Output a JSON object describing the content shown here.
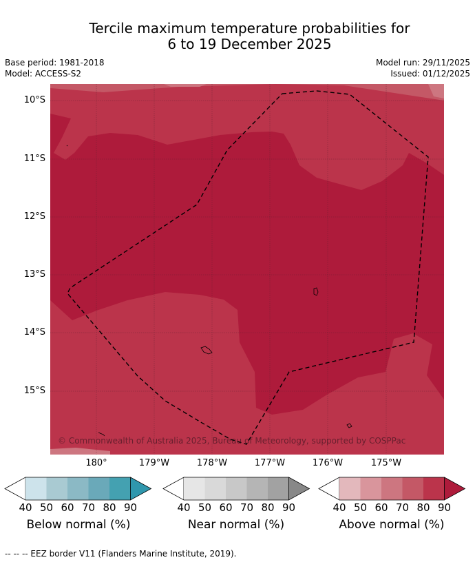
{
  "title_line1": "Tercile maximum temperature probabilities for",
  "title_line2": "6 to 19 December 2025",
  "base_period": "Base period: 1981-2018",
  "model": "Model: ACCESS-S2",
  "model_run": "Model run: 29/11/2025",
  "issued": "Issued: 01/12/2025",
  "copyright": "© Commonwealth of Australia 2025, Bureau of Meteorology, supported by COSPPac",
  "lat_labels": [
    "10°S",
    "11°S",
    "12°S",
    "13°S",
    "14°S",
    "15°S"
  ],
  "lon_labels": [
    "180°",
    "179°W",
    "178°W",
    "177°W",
    "176°W",
    "175°W"
  ],
  "colorbars": [
    {
      "label": "Below normal (%)",
      "colors": [
        "#cde3eb",
        "#a9cad2",
        "#8bb9c5",
        "#6aa9b9",
        "#44a1b1",
        "#2f97ad"
      ],
      "ticks": [
        "40",
        "50",
        "60",
        "70",
        "80",
        "90"
      ]
    },
    {
      "label": "Near normal (%)",
      "colors": [
        "#e6e6e6",
        "#d9d9d9",
        "#c8c8c8",
        "#b5b5b5",
        "#a2a2a2",
        "#888888"
      ],
      "ticks": [
        "40",
        "50",
        "60",
        "70",
        "80",
        "90"
      ]
    },
    {
      "label": "Above normal (%)",
      "colors": [
        "#e3b8bc",
        "#d9959c",
        "#cd7680",
        "#c45866",
        "#bb344b",
        "#ae1b3b"
      ],
      "ticks": [
        "40",
        "50",
        "60",
        "70",
        "80",
        "90"
      ]
    }
  ],
  "footer": "-- -- -- EEZ border V11 (Flanders Marine Institute, 2019)."
}
